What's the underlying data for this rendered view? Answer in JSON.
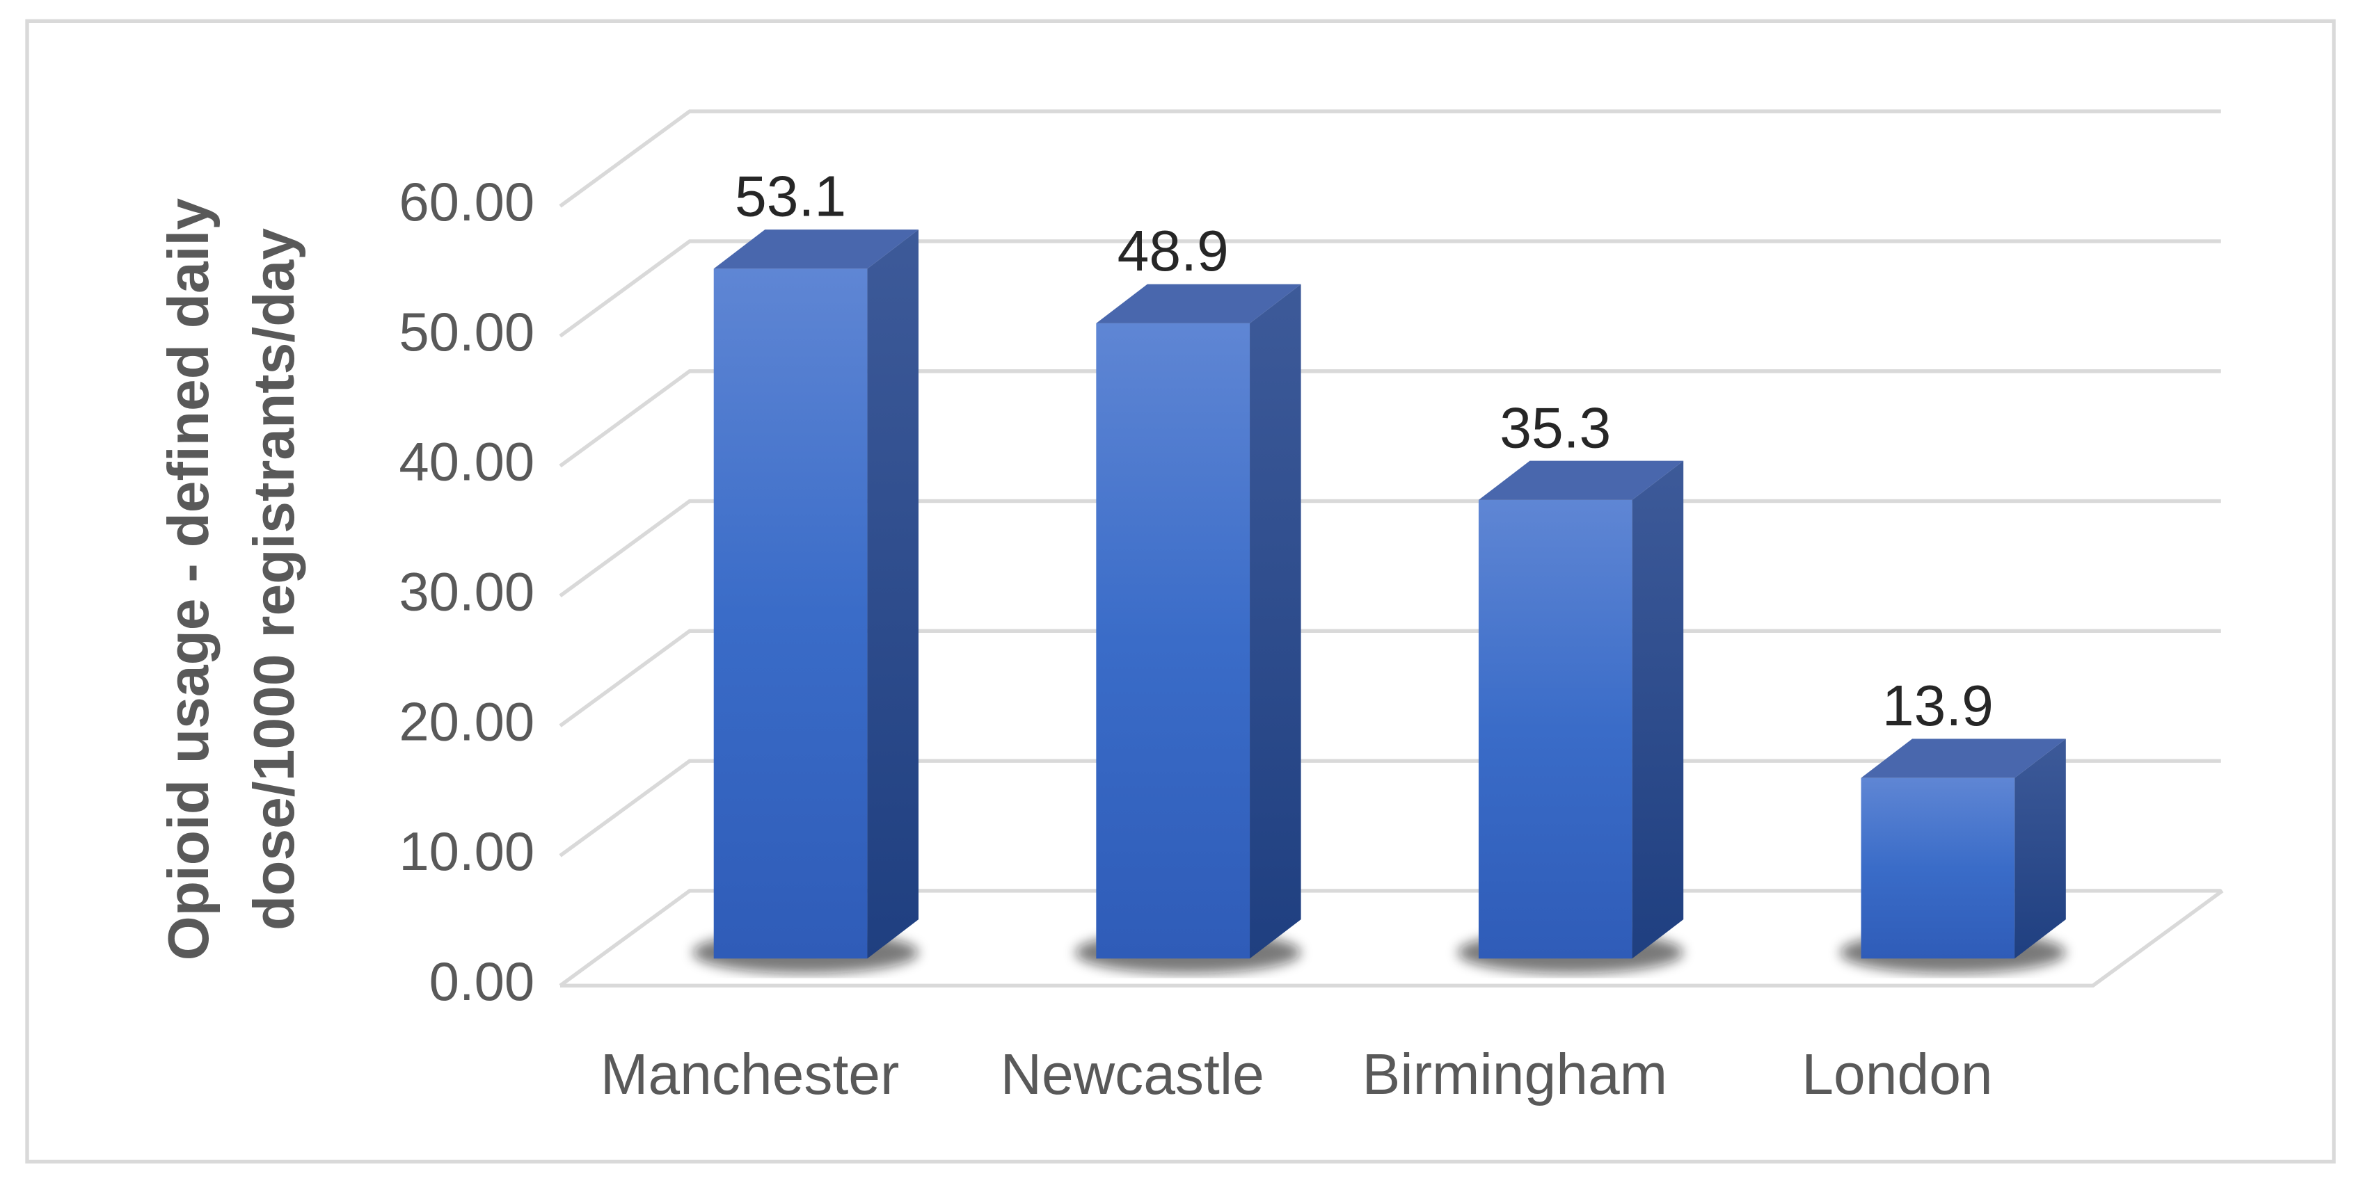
{
  "chart_data": {
    "type": "bar3d",
    "ylabel": [
      "Opioid usage - defined daily",
      "dose/1000 registrants/day"
    ],
    "categories": [
      "Manchester",
      "Newcastle",
      "Birmingham",
      "London"
    ],
    "values": [
      53.1,
      48.9,
      35.3,
      13.9
    ],
    "color": "#4472c4",
    "ylim": [
      0,
      60
    ],
    "yticks": [
      {
        "value": 0,
        "label": "0.00"
      },
      {
        "value": 10,
        "label": "10.00"
      },
      {
        "value": 20,
        "label": "20.00"
      },
      {
        "value": 30,
        "label": "30.00"
      },
      {
        "value": 40,
        "label": "40.00"
      },
      {
        "value": 50,
        "label": "50.00"
      },
      {
        "value": 60,
        "label": "60.00"
      }
    ],
    "grid": true
  }
}
